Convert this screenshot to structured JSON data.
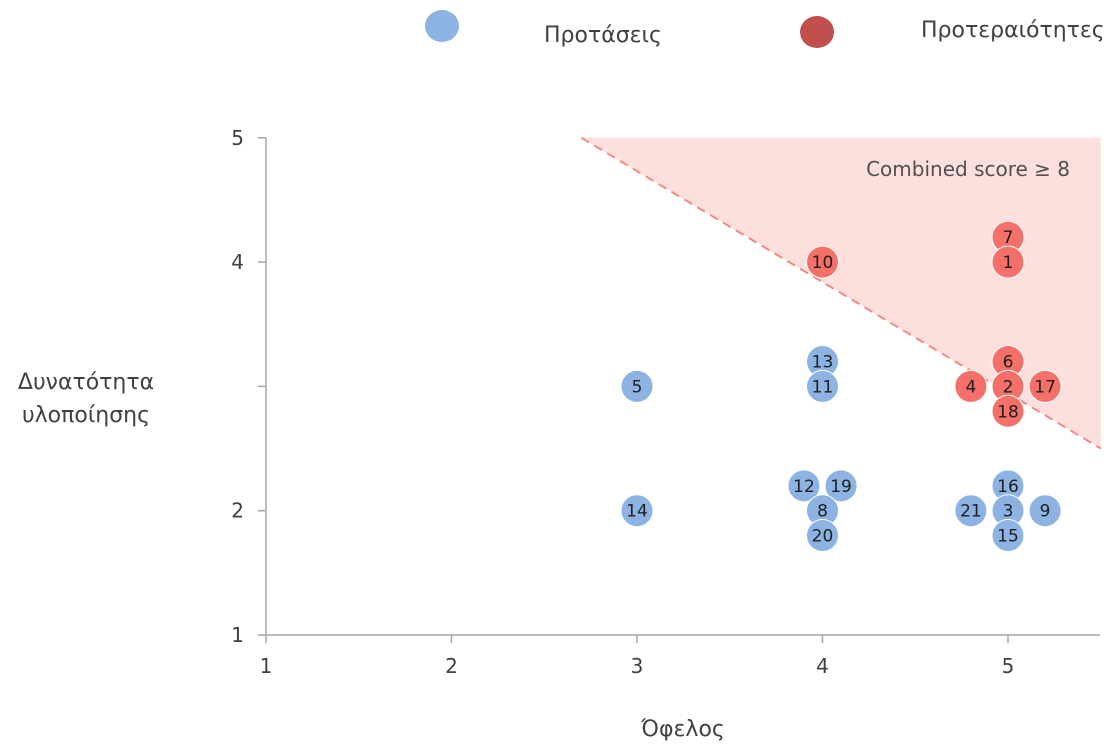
{
  "chart_data": {
    "type": "scatter",
    "xlabel": "Όφελος",
    "ylabel_lines": [
      "Δυνατότητα",
      "υλοποίησης"
    ],
    "xlim": [
      1,
      5.5
    ],
    "ylim": [
      1,
      5
    ],
    "x_ticks": [
      "1",
      "2",
      "3",
      "4",
      "5"
    ],
    "y_ticks": [
      "1",
      "2",
      "4",
      "5"
    ],
    "annotation": "Combined score ≥ 8",
    "threshold_region": {
      "label": "Combined score ≥ 8",
      "sum_min": 8,
      "color": "#fde0de",
      "line_color": "#f08a84"
    },
    "series": [
      {
        "name": "Προτάσεις",
        "color": "#8db3e2",
        "points": [
          {
            "label": "5",
            "x": 3,
            "y": 3
          },
          {
            "label": "14",
            "x": 3,
            "y": 2
          },
          {
            "label": "13",
            "x": 4,
            "y": 3.2
          },
          {
            "label": "11",
            "x": 4,
            "y": 3
          },
          {
            "label": "12",
            "x": 3.9,
            "y": 2.2
          },
          {
            "label": "19",
            "x": 4.1,
            "y": 2.2
          },
          {
            "label": "8",
            "x": 4,
            "y": 2
          },
          {
            "label": "20",
            "x": 4,
            "y": 1.8
          },
          {
            "label": "16",
            "x": 5,
            "y": 2.2
          },
          {
            "label": "21",
            "x": 4.8,
            "y": 2
          },
          {
            "label": "3",
            "x": 5,
            "y": 2
          },
          {
            "label": "9",
            "x": 5.2,
            "y": 2
          },
          {
            "label": "15",
            "x": 5,
            "y": 1.8
          }
        ]
      },
      {
        "name": "Προτεραιότητες",
        "color": "#f47068",
        "legend_color": "#c0504d",
        "points": [
          {
            "label": "10",
            "x": 4,
            "y": 4
          },
          {
            "label": "7",
            "x": 5,
            "y": 4.2
          },
          {
            "label": "1",
            "x": 5,
            "y": 4
          },
          {
            "label": "6",
            "x": 5,
            "y": 3.2
          },
          {
            "label": "4",
            "x": 4.8,
            "y": 3
          },
          {
            "label": "2",
            "x": 5,
            "y": 3
          },
          {
            "label": "17",
            "x": 5.2,
            "y": 3
          },
          {
            "label": "18",
            "x": 5,
            "y": 2.8
          }
        ]
      }
    ],
    "axis_color": "#a6a6a6"
  }
}
